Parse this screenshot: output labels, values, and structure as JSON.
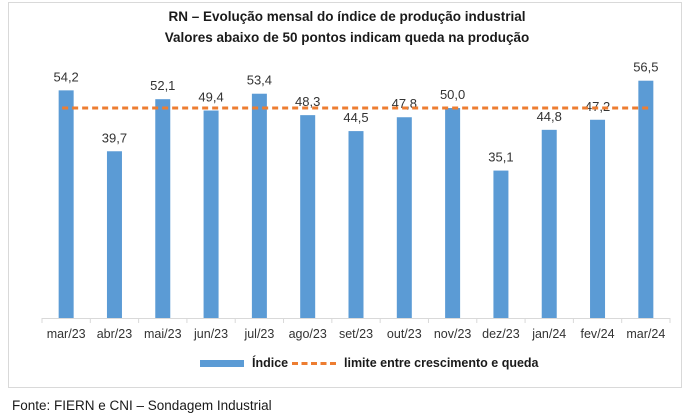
{
  "chart_data": {
    "type": "bar",
    "title": "RN – Evolução mensal do índice de produção industrial",
    "subtitle": "Valores abaixo de 50 pontos indicam queda na produção",
    "categories": [
      "mar/23",
      "abr/23",
      "mai/23",
      "jun/23",
      "jul/23",
      "ago/23",
      "set/23",
      "out/23",
      "nov/23",
      "dez/23",
      "jan/24",
      "fev/24",
      "mar/24"
    ],
    "series": [
      {
        "name": "Índice",
        "values": [
          54.2,
          39.7,
          52.1,
          49.4,
          53.4,
          48.3,
          44.5,
          47.8,
          50.0,
          35.1,
          44.8,
          47.2,
          56.5
        ],
        "color": "#5b9bd5"
      }
    ],
    "data_labels": [
      "54,2",
      "39,7",
      "52,1",
      "49,4",
      "53,4",
      "48,3",
      "44,5",
      "47,8",
      "50,0",
      "35,1",
      "44,8",
      "47,2",
      "56,5"
    ],
    "reference_line": {
      "name": "limite entre crescimento e queda",
      "value": 50,
      "color": "#ed7d31",
      "style": "dashed"
    },
    "ylim": [
      0,
      60
    ],
    "grid": false,
    "legend_position": "bottom"
  },
  "source": "Fonte: FIERN e CNI – Sondagem Industrial"
}
